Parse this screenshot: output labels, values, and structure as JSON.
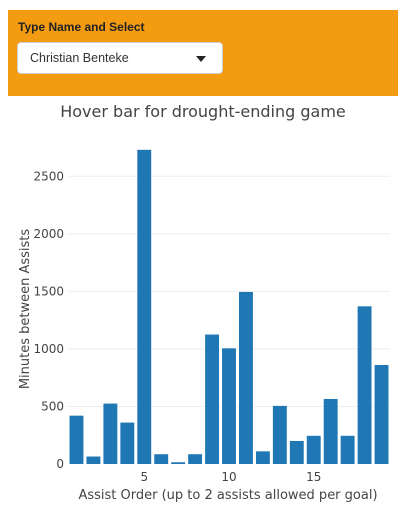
{
  "control": {
    "label": "Type Name and Select",
    "selected": "Christian Benteke",
    "accent": "#f39c12"
  },
  "chart_data": {
    "type": "bar",
    "title": "Hover bar for drought-ending game",
    "xlabel": "Assist Order (up to 2 assists allowed per goal)",
    "ylabel": "Minutes between Assists",
    "color": "#1f77b4",
    "grid": true,
    "xlim": [
      0.5,
      19.5
    ],
    "ylim": [
      0,
      2850
    ],
    "x_ticks": [
      5,
      10,
      15
    ],
    "y_ticks": [
      0,
      500,
      1000,
      1500,
      2000,
      2500
    ],
    "x": [
      1,
      2,
      3,
      4,
      5,
      6,
      7,
      8,
      9,
      10,
      11,
      12,
      13,
      14,
      15,
      16,
      17,
      18,
      19
    ],
    "values": [
      420,
      65,
      525,
      360,
      2730,
      85,
      15,
      85,
      1125,
      1005,
      1495,
      110,
      505,
      200,
      245,
      565,
      245,
      1370,
      860
    ]
  }
}
